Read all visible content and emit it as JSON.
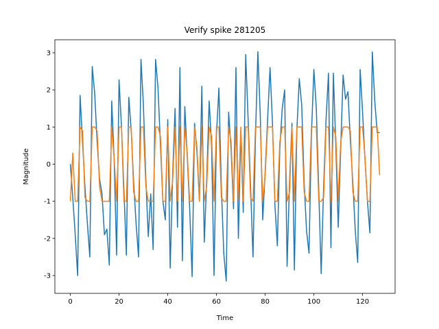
{
  "chart_data": {
    "type": "line",
    "title": "Verify spike 281205",
    "xlabel": "Time",
    "ylabel": "Magnitude",
    "x": [
      0,
      1,
      2,
      3,
      4,
      5,
      6,
      7,
      8,
      9,
      10,
      11,
      12,
      13,
      14,
      15,
      16,
      17,
      18,
      19,
      20,
      21,
      22,
      23,
      24,
      25,
      26,
      27,
      28,
      29,
      30,
      31,
      32,
      33,
      34,
      35,
      36,
      37,
      38,
      39,
      40,
      41,
      42,
      43,
      44,
      45,
      46,
      47,
      48,
      49,
      50,
      51,
      52,
      53,
      54,
      55,
      56,
      57,
      58,
      59,
      60,
      61,
      62,
      63,
      64,
      65,
      66,
      67,
      68,
      69,
      70,
      71,
      72,
      73,
      74,
      75,
      76,
      77,
      78,
      79,
      80,
      81,
      82,
      83,
      84,
      85,
      86,
      87,
      88,
      89,
      90,
      91,
      92,
      93,
      94,
      95,
      96,
      97,
      98,
      99,
      100,
      101,
      102,
      103,
      104,
      105,
      106,
      107,
      108,
      109,
      110,
      111,
      112,
      113,
      114,
      115,
      116,
      117,
      118,
      119,
      120,
      121,
      122,
      123,
      124,
      125,
      126,
      127
    ],
    "series": [
      {
        "color": "#1f77b4",
        "values": [
          0.0,
          -0.9,
          -1.9,
          -3.0,
          1.85,
          0.6,
          -0.6,
          -1.6,
          -2.5,
          2.63,
          1.9,
          0.6,
          -0.4,
          -0.8,
          -1.9,
          -1.75,
          -2.72,
          1.7,
          0.1,
          -2.45,
          2.27,
          1.0,
          -0.7,
          -2.45,
          1.8,
          0.9,
          -0.5,
          -1.6,
          -2.5,
          2.82,
          1.6,
          -0.4,
          -1.95,
          -0.8,
          -2.3,
          2.82,
          2.05,
          0.5,
          -1.0,
          -1.5,
          1.2,
          -2.8,
          -0.3,
          1.5,
          -1.7,
          2.6,
          -2.6,
          1.55,
          0.2,
          -1.2,
          -3.03,
          1.1,
          0.3,
          -1.0,
          2.1,
          -2.1,
          -0.4,
          1.7,
          0.5,
          -3.0,
          0.8,
          2.05,
          -0.6,
          -2.4,
          -3.15,
          1.4,
          0.4,
          -1.2,
          2.6,
          -2.0,
          0.9,
          -1.3,
          2.95,
          1.2,
          -0.6,
          -2.5,
          0.7,
          3.03,
          1.3,
          -1.5,
          -0.2,
          1.2,
          2.6,
          1.1,
          -1.1,
          -2.2,
          0.4,
          1.5,
          2.0,
          -2.75,
          -0.5,
          1.1,
          -2.85,
          0.9,
          2.3,
          1.6,
          -0.5,
          -1.8,
          -2.4,
          0.8,
          2.55,
          1.5,
          -0.7,
          -2.95,
          -0.6,
          1.2,
          2.45,
          -2.25,
          2.45,
          0.5,
          -1.7,
          0.4,
          2.4,
          1.75,
          1.95,
          0.6,
          -0.5,
          -1.8,
          -2.65,
          2.55,
          1.4,
          0.1,
          -1.0,
          -1.85,
          3.02,
          1.7,
          0.85,
          0.85
        ]
      },
      {
        "color": "#ff7f0e",
        "values": [
          -1,
          0.3,
          -1,
          -1,
          1,
          0.9,
          -0.9,
          -1,
          -1,
          1,
          1,
          0.9,
          -0.6,
          -1,
          -1,
          -1,
          -1,
          1,
          0.15,
          -1,
          1,
          1,
          -1,
          -1,
          1,
          1,
          -0.75,
          -1,
          -1,
          1,
          1,
          -0.6,
          -1,
          -1,
          -1,
          1,
          1,
          0.75,
          -1,
          -1,
          1,
          -1,
          -0.45,
          1,
          -1,
          1,
          -1,
          1,
          0.3,
          -1,
          -1,
          1,
          0.45,
          -1,
          1,
          -1,
          -0.6,
          1,
          0.75,
          -1,
          1,
          1,
          -0.9,
          -1,
          -1,
          1,
          0.6,
          -1,
          1,
          -1,
          1,
          -1,
          1,
          1,
          -0.9,
          -1,
          1,
          1,
          1,
          -1,
          -0.3,
          1,
          1,
          1,
          -1,
          -1,
          0.6,
          1,
          1,
          -1,
          -0.75,
          1,
          -1,
          1,
          1,
          1,
          -0.75,
          -1,
          -1,
          1,
          1,
          1,
          -1,
          -1,
          -0.9,
          1,
          1,
          -1,
          1,
          0.75,
          -1,
          0.6,
          1,
          1,
          1,
          0.9,
          -0.75,
          -1,
          -1,
          1,
          1,
          0.15,
          -1,
          -1,
          1,
          1,
          1,
          -0.3
        ]
      }
    ],
    "xlim": [
      -6.35,
      133.35
    ],
    "ylim": [
      -3.48,
      3.35
    ],
    "xticks": [
      0,
      20,
      40,
      60,
      80,
      100,
      120
    ],
    "yticks": [
      -3,
      -2,
      -1,
      0,
      1,
      2,
      3
    ]
  }
}
